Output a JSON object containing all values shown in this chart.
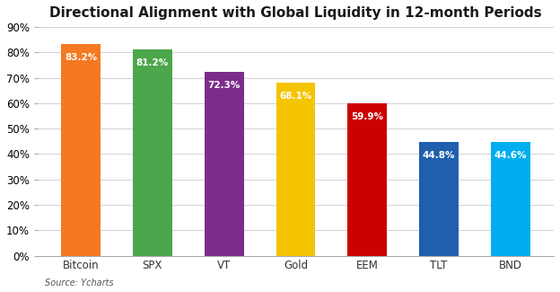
{
  "title": "Directional Alignment with Global Liquidity in 12-month Periods",
  "categories": [
    "Bitcoin",
    "SPX",
    "VT",
    "Gold",
    "EEM",
    "TLT",
    "BND"
  ],
  "values": [
    83.2,
    81.2,
    72.3,
    68.1,
    59.9,
    44.8,
    44.6
  ],
  "bar_colors": [
    "#F47920",
    "#4CA64C",
    "#7B2D8B",
    "#F5C400",
    "#CC0000",
    "#1F5FAD",
    "#00AEEF"
  ],
  "label_color": "white",
  "ylim": [
    0,
    90
  ],
  "yticks": [
    0,
    10,
    20,
    30,
    40,
    50,
    60,
    70,
    80,
    90
  ],
  "source": "Source: Ycharts",
  "background_color": "#ffffff",
  "label_fontsize": 7.5,
  "title_fontsize": 11,
  "source_fontsize": 7,
  "xlabel_fontsize": 8.5,
  "ylabel_fontsize": 8.5,
  "bar_width": 0.55
}
